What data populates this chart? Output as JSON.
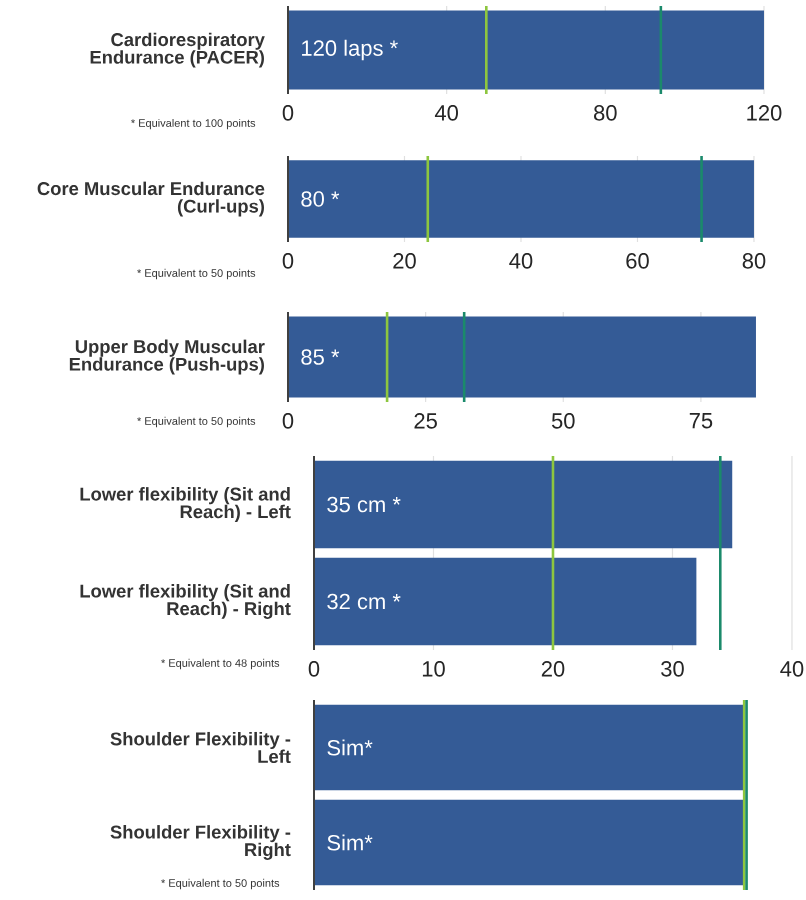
{
  "chart_data": [
    {
      "type": "bar",
      "orientation": "horizontal",
      "categories": [
        "Cardiorespiratory Endurance (PACER)"
      ],
      "values": [
        120
      ],
      "value_labels": [
        "120 laps *"
      ],
      "color": "#345b96",
      "xlim": [
        0,
        120
      ],
      "xticks": [
        0,
        40,
        80,
        120
      ],
      "grid": "x",
      "ref_lines": [
        {
          "axis": "x",
          "value": 50,
          "color": "#8dc63f"
        },
        {
          "axis": "x",
          "value": 94,
          "color": "#1b8a6b"
        }
      ],
      "annotations": [
        "* Equivalent to 100 points"
      ]
    },
    {
      "type": "bar",
      "orientation": "horizontal",
      "categories": [
        "Core Muscular Endurance (Curl-ups)"
      ],
      "values": [
        80
      ],
      "value_labels": [
        "80 *"
      ],
      "color": "#345b96",
      "xlim": [
        0,
        80
      ],
      "xticks": [
        0,
        20,
        40,
        60,
        80
      ],
      "grid": "x",
      "ref_lines": [
        {
          "axis": "x",
          "value": 24,
          "color": "#8dc63f"
        },
        {
          "axis": "x",
          "value": 71,
          "color": "#1b8a6b"
        }
      ],
      "annotations": [
        "* Equivalent to 50 points"
      ]
    },
    {
      "type": "bar",
      "orientation": "horizontal",
      "categories": [
        "Upper Body Muscular Endurance (Push-ups)"
      ],
      "values": [
        85
      ],
      "value_labels": [
        "85 *"
      ],
      "color": "#345b96",
      "xlim": [
        0,
        85
      ],
      "xticks": [
        0,
        25,
        50,
        75
      ],
      "grid": "x",
      "ref_lines": [
        {
          "axis": "x",
          "value": 18,
          "color": "#8dc63f"
        },
        {
          "axis": "x",
          "value": 32,
          "color": "#1b8a6b"
        }
      ],
      "annotations": [
        "* Equivalent to 50 points"
      ]
    },
    {
      "type": "bar",
      "orientation": "horizontal",
      "categories": [
        "Lower flexibility (Sit and Reach) - Left",
        "Lower flexibility (Sit and Reach) - Right"
      ],
      "values": [
        35,
        32
      ],
      "value_labels": [
        "35 cm *",
        "32 cm *"
      ],
      "color": "#345b96",
      "xlim": [
        0,
        40
      ],
      "xticks": [
        0,
        10,
        20,
        30,
        40
      ],
      "grid": "x",
      "ref_lines": [
        {
          "axis": "x",
          "value": 20,
          "color": "#8dc63f"
        },
        {
          "axis": "x",
          "value": 34,
          "color": "#1b8a6b"
        }
      ],
      "annotations": [
        "* Equivalent to 48 points"
      ]
    },
    {
      "type": "bar",
      "orientation": "horizontal",
      "categories": [
        "Shoulder Flexibility - Left",
        "Shoulder Flexibility - Right"
      ],
      "values": [
        36,
        36
      ],
      "value_labels": [
        "Sim*",
        "Sim*"
      ],
      "color": "#345b96",
      "xlim": [
        0,
        40
      ],
      "xticks": [
        0,
        10,
        20,
        30,
        40
      ],
      "tick_labels": "y",
      "ref_lines": [
        {
          "axis": "x",
          "value": 36,
          "color": "#8dc63f"
        },
        {
          "axis": "x",
          "value": 36.2,
          "color": "#1b8a6b"
        }
      ],
      "annotations": [
        "* Equivalent to 50 points"
      ]
    }
  ]
}
